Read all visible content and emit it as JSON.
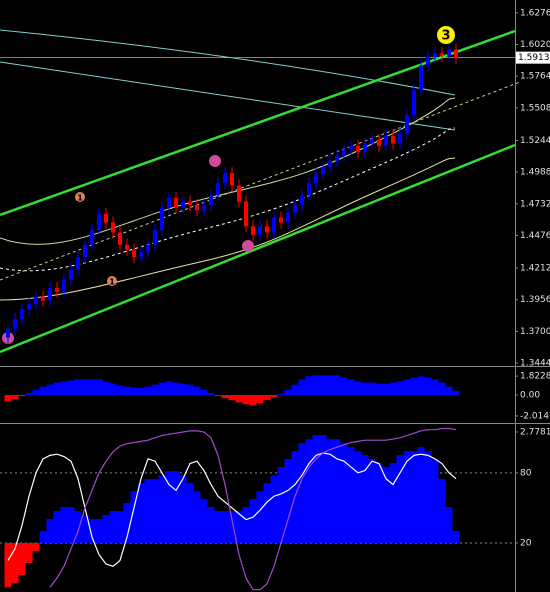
{
  "chart_data": [
    {
      "type": "candlestick",
      "up_color": "#0000ff",
      "down_color": "#ff0000",
      "open": [
        1.365,
        1.372,
        1.38,
        1.388,
        1.392,
        1.398,
        1.395,
        1.405,
        1.402,
        1.412,
        1.42,
        1.43,
        1.44,
        1.452,
        1.465,
        1.458,
        1.45,
        1.44,
        1.436,
        1.43,
        1.434,
        1.44,
        1.452,
        1.47,
        1.478,
        1.47,
        1.475,
        1.472,
        1.468,
        1.472,
        1.48,
        1.49,
        1.498,
        1.488,
        1.475,
        1.455,
        1.448,
        1.455,
        1.45,
        1.462,
        1.458,
        1.466,
        1.472,
        1.48,
        1.49,
        1.497,
        1.503,
        1.508,
        1.512,
        1.517,
        1.52,
        1.515,
        1.522,
        1.525,
        1.52,
        1.528,
        1.522,
        1.53,
        1.545,
        1.565,
        1.585,
        1.592,
        1.595,
        1.593,
        1.598
      ],
      "high": [
        1.377,
        1.385,
        1.393,
        1.397,
        1.403,
        1.403,
        1.41,
        1.41,
        1.417,
        1.425,
        1.435,
        1.445,
        1.457,
        1.47,
        1.47,
        1.463,
        1.455,
        1.445,
        1.441,
        1.439,
        1.445,
        1.457,
        1.475,
        1.483,
        1.483,
        1.48,
        1.48,
        1.477,
        1.477,
        1.485,
        1.495,
        1.503,
        1.503,
        1.493,
        1.48,
        1.46,
        1.46,
        1.46,
        1.467,
        1.467,
        1.471,
        1.477,
        1.485,
        1.495,
        1.502,
        1.508,
        1.513,
        1.517,
        1.522,
        1.525,
        1.525,
        1.527,
        1.53,
        1.53,
        1.533,
        1.533,
        1.535,
        1.55,
        1.57,
        1.59,
        1.597,
        1.6,
        1.6,
        1.603,
        1.603
      ],
      "low": [
        1.36,
        1.367,
        1.375,
        1.383,
        1.387,
        1.39,
        1.39,
        1.397,
        1.397,
        1.407,
        1.415,
        1.425,
        1.435,
        1.447,
        1.453,
        1.445,
        1.435,
        1.431,
        1.425,
        1.425,
        1.429,
        1.435,
        1.447,
        1.465,
        1.465,
        1.465,
        1.467,
        1.463,
        1.463,
        1.467,
        1.475,
        1.485,
        1.483,
        1.47,
        1.45,
        1.443,
        1.443,
        1.445,
        1.445,
        1.453,
        1.453,
        1.461,
        1.467,
        1.475,
        1.485,
        1.492,
        1.498,
        1.503,
        1.507,
        1.512,
        1.51,
        1.51,
        1.517,
        1.515,
        1.515,
        1.517,
        1.517,
        1.525,
        1.54,
        1.56,
        1.58,
        1.587,
        1.588,
        1.588,
        1.586
      ],
      "close": [
        1.372,
        1.38,
        1.388,
        1.392,
        1.398,
        1.395,
        1.405,
        1.402,
        1.412,
        1.42,
        1.43,
        1.44,
        1.452,
        1.465,
        1.458,
        1.45,
        1.44,
        1.436,
        1.43,
        1.434,
        1.44,
        1.452,
        1.47,
        1.478,
        1.47,
        1.475,
        1.472,
        1.468,
        1.472,
        1.48,
        1.49,
        1.498,
        1.488,
        1.475,
        1.455,
        1.448,
        1.455,
        1.45,
        1.462,
        1.458,
        1.466,
        1.472,
        1.48,
        1.49,
        1.497,
        1.503,
        1.508,
        1.512,
        1.517,
        1.52,
        1.515,
        1.522,
        1.525,
        1.52,
        1.528,
        1.522,
        1.53,
        1.545,
        1.565,
        1.585,
        1.592,
        1.595,
        1.593,
        1.598,
        1.591
      ],
      "current_price": 1.59137,
      "ylim": [
        1.342,
        1.638
      ],
      "yticks": [
        {
          "value": 1.6276,
          "label": "1.62760"
        },
        {
          "value": 1.602,
          "label": "1.60200"
        },
        {
          "value": 1.5764,
          "label": "1.57640"
        },
        {
          "value": 1.5508,
          "label": "1.55080"
        },
        {
          "value": 1.5244,
          "label": "1.52440"
        },
        {
          "value": 1.4988,
          "label": "1.49880"
        },
        {
          "value": 1.4732,
          "label": "1.47320"
        },
        {
          "value": 1.4476,
          "label": "1.44760"
        },
        {
          "value": 1.4212,
          "label": "1.42120"
        },
        {
          "value": 1.3956,
          "label": "1.39560"
        },
        {
          "value": 1.37,
          "label": "1.37000"
        },
        {
          "value": 1.3444,
          "label": "1.34440"
        }
      ],
      "annotations": [
        "3",
        "1",
        "1"
      ]
    },
    {
      "type": "histogram",
      "color": "#0000ff",
      "negative_color": "#ff0000",
      "values": [
        -0.6,
        -0.4,
        -0.1,
        0.2,
        0.5,
        0.8,
        1.0,
        1.2,
        1.3,
        1.4,
        1.5,
        1.5,
        1.5,
        1.5,
        1.3,
        1.1,
        0.9,
        0.8,
        0.7,
        0.7,
        0.8,
        1.0,
        1.2,
        1.3,
        1.2,
        1.1,
        1.0,
        0.8,
        0.5,
        0.2,
        -0.1,
        -0.3,
        -0.5,
        -0.7,
        -0.9,
        -1.0,
        -0.8,
        -0.5,
        -0.2,
        0.1,
        0.5,
        1.0,
        1.5,
        1.8,
        1.9,
        1.9,
        1.9,
        1.9,
        1.7,
        1.5,
        1.3,
        1.2,
        1.2,
        1.1,
        1.1,
        1.2,
        1.3,
        1.5,
        1.7,
        1.8,
        1.7,
        1.5,
        1.2,
        0.8,
        0.4
      ],
      "ylim": [
        -2.6,
        2.6
      ],
      "yticks": [
        1.82285,
        {
          "value": 0,
          "label": "0.00"
        },
        -2.01472
      ]
    },
    {
      "type": "oscillator",
      "ylim": [
        -22,
        121
      ],
      "yticks": [
        80,
        20
      ],
      "grid": true,
      "y2lim": [
        -1.227,
        2.953
      ],
      "y2ticks": [
        2.77818
      ],
      "series": [
        {
          "type": "bar",
          "axis": "y2",
          "color": "#0000ff",
          "negative_color": "#ff0000",
          "values": [
            -1.1,
            -1.0,
            -0.8,
            -0.5,
            -0.2,
            0.3,
            0.6,
            0.8,
            0.9,
            0.9,
            0.8,
            0.7,
            0.6,
            0.6,
            0.7,
            0.8,
            0.8,
            1.0,
            1.3,
            1.5,
            1.6,
            1.6,
            1.7,
            1.8,
            1.8,
            1.7,
            1.5,
            1.3,
            1.1,
            0.9,
            0.8,
            0.8,
            0.8,
            0.8,
            0.9,
            1.1,
            1.3,
            1.5,
            1.7,
            1.9,
            2.1,
            2.3,
            2.5,
            2.6,
            2.7,
            2.7,
            2.6,
            2.6,
            2.5,
            2.4,
            2.3,
            2.2,
            2.1,
            2.0,
            1.9,
            2.0,
            2.2,
            2.3,
            2.3,
            2.4,
            2.3,
            2.1,
            1.6,
            0.9,
            0.3
          ]
        },
        {
          "type": "line",
          "color": "#ffffff",
          "values": [
            5,
            15,
            35,
            60,
            80,
            92,
            95,
            96,
            94,
            90,
            75,
            50,
            25,
            10,
            2,
            0,
            5,
            25,
            50,
            75,
            92,
            90,
            80,
            70,
            65,
            75,
            88,
            90,
            82,
            70,
            60,
            55,
            50,
            45,
            40,
            42,
            48,
            55,
            60,
            62,
            65,
            70,
            78,
            88,
            95,
            97,
            96,
            92,
            90,
            85,
            80,
            82,
            90,
            88,
            75,
            70,
            80,
            90,
            95,
            96,
            95,
            92,
            88,
            80,
            75
          ]
        },
        {
          "type": "line",
          "color": "#a04ad0",
          "values": [
            null,
            null,
            null,
            null,
            null,
            null,
            -18,
            -10,
            0,
            15,
            30,
            50,
            65,
            80,
            90,
            98,
            103,
            105,
            106,
            107,
            108,
            110,
            112,
            113,
            114,
            115,
            116,
            116,
            115,
            110,
            95,
            70,
            40,
            10,
            -10,
            -20,
            -20,
            -15,
            0,
            20,
            40,
            60,
            75,
            85,
            92,
            97,
            100,
            102,
            104,
            106,
            107,
            108,
            108,
            108,
            108,
            109,
            110,
            112,
            114,
            116,
            117,
            117,
            118,
            118,
            117
          ]
        }
      ]
    }
  ]
}
